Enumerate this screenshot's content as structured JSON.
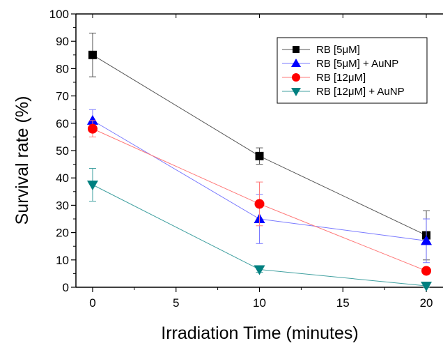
{
  "chart_data": {
    "type": "line",
    "title": "",
    "xlabel": "Irradiation Time (minutes)",
    "ylabel": "Survival rate (%)",
    "xlim": [
      -1,
      21
    ],
    "ylim": [
      0,
      100
    ],
    "xticks": [
      0,
      5,
      10,
      15,
      20
    ],
    "yticks": [
      0,
      10,
      20,
      30,
      40,
      50,
      60,
      70,
      80,
      90,
      100
    ],
    "x": [
      0,
      10,
      20
    ],
    "legend_position": "top-right",
    "grid": false,
    "series": [
      {
        "name": "RB [5μM]",
        "values": [
          85,
          48,
          19
        ],
        "errors": [
          8,
          3,
          9
        ],
        "color": "#000000",
        "line_color": "#555555",
        "marker": "square"
      },
      {
        "name": "RB [5μM] + AuNP",
        "values": [
          61,
          25,
          17
        ],
        "errors": [
          4,
          9,
          8
        ],
        "color": "#0000ff",
        "line_color": "#7a7aff",
        "marker": "triangle-up"
      },
      {
        "name": "RB [12μM]",
        "values": [
          58,
          30.5,
          6
        ],
        "errors": [
          3,
          8,
          1
        ],
        "color": "#ff0000",
        "line_color": "#ff7a7a",
        "marker": "circle"
      },
      {
        "name": "RB [12μM] + AuNP",
        "values": [
          37.5,
          6.5,
          0.5
        ],
        "errors": [
          6,
          1,
          0.5
        ],
        "color": "#008080",
        "line_color": "#40a0a0",
        "marker": "triangle-down"
      }
    ]
  }
}
